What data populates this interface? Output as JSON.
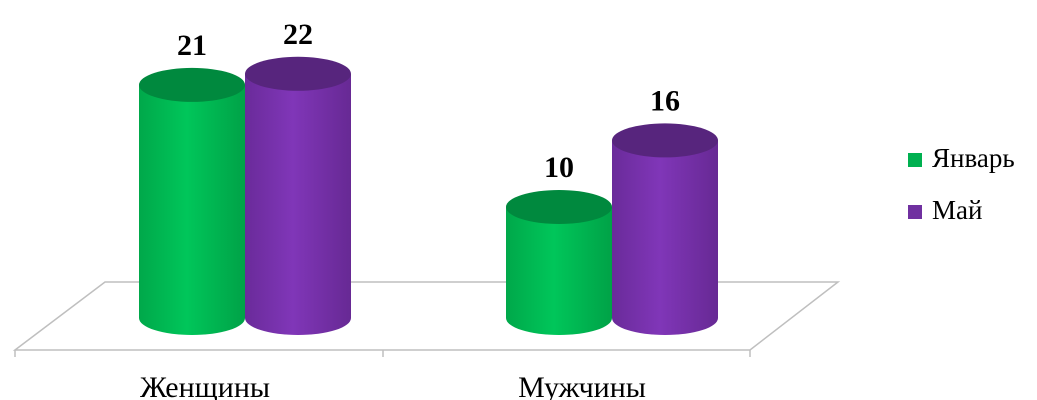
{
  "chart_data": {
    "type": "bar",
    "style": "3d-cylinder",
    "categories": [
      "Женщины",
      "Мужчины"
    ],
    "series": [
      {
        "name": "Январь",
        "color": "#00B050",
        "values": [
          21,
          10
        ]
      },
      {
        "name": "Май",
        "color": "#7030A0",
        "values": [
          22,
          16
        ]
      }
    ],
    "legend": "right",
    "grid": false,
    "ylim": [
      0,
      24
    ]
  }
}
